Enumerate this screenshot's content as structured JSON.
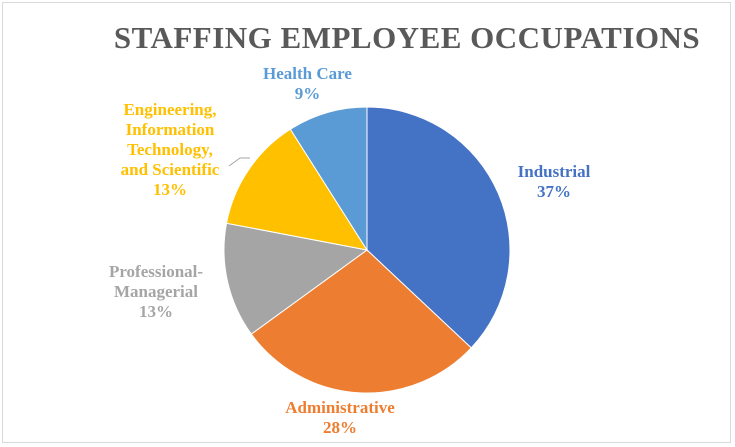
{
  "chart_data": {
    "type": "pie",
    "title": "STAFFING EMPLOYEE OCCUPATIONS",
    "slices": [
      {
        "label_lines": [
          "Industrial"
        ],
        "value": 37,
        "value_label": "37%",
        "color": "#4472C4"
      },
      {
        "label_lines": [
          "Administrative"
        ],
        "value": 28,
        "value_label": "28%",
        "color": "#ED7D31"
      },
      {
        "label_lines": [
          "Professional-",
          "Managerial"
        ],
        "value": 13,
        "value_label": "13%",
        "color": "#A5A5A5"
      },
      {
        "label_lines": [
          "Engineering,",
          "Information",
          "Technology,",
          "and Scientific"
        ],
        "value": 13,
        "value_label": "13%",
        "color": "#FFC000"
      },
      {
        "label_lines": [
          "Health Care"
        ],
        "value": 9,
        "value_label": "9%",
        "color": "#5B9BD5"
      }
    ],
    "legend": "none"
  }
}
